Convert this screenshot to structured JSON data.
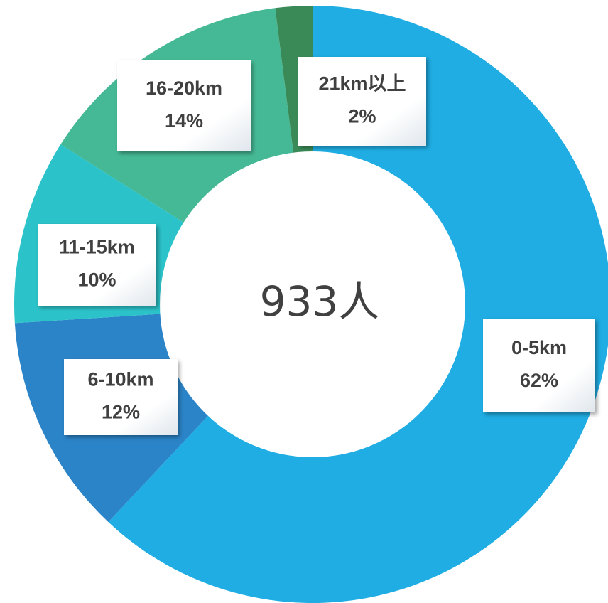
{
  "chart_data": {
    "type": "donut",
    "categories": [
      "0-5km",
      "6-10km",
      "11-15km",
      "16-20km",
      "21km以上"
    ],
    "values": [
      62,
      12,
      10,
      14,
      2
    ],
    "value_labels": [
      "62%",
      "12%",
      "10%",
      "14%",
      "2%"
    ],
    "colors": [
      "#1fade3",
      "#2b84c8",
      "#2bc3c9",
      "#45b995",
      "#3a8a57"
    ],
    "center_label": "933人"
  }
}
